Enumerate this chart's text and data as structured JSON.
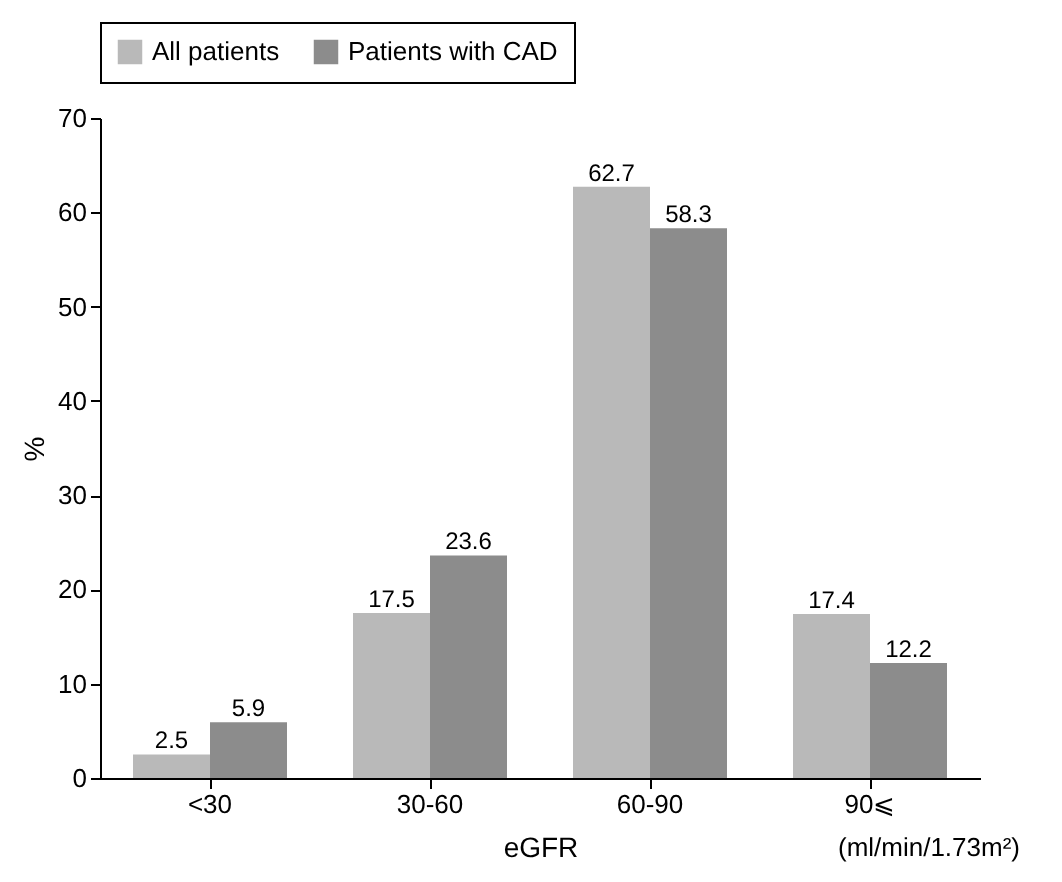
{
  "chart_data": {
    "type": "bar",
    "xlabel": "eGFR",
    "ylabel": "%",
    "categories": [
      "<30",
      "30-60",
      "60-90",
      "90⩽"
    ],
    "series": [
      {
        "name": "All patients",
        "color": "#b9b9b9",
        "values": [
          2.5,
          17.5,
          62.7,
          17.4
        ]
      },
      {
        "name": "Patients with CAD",
        "color": "#8c8c8c",
        "values": [
          5.9,
          23.6,
          58.3,
          12.2
        ]
      }
    ],
    "ylim": [
      0,
      70
    ],
    "yticks": [
      0,
      10,
      20,
      30,
      40,
      50,
      60,
      70
    ],
    "grid": false,
    "legend": "top",
    "data_labels": true,
    "annotations": [
      "(ml/min/1.73m²)"
    ]
  }
}
